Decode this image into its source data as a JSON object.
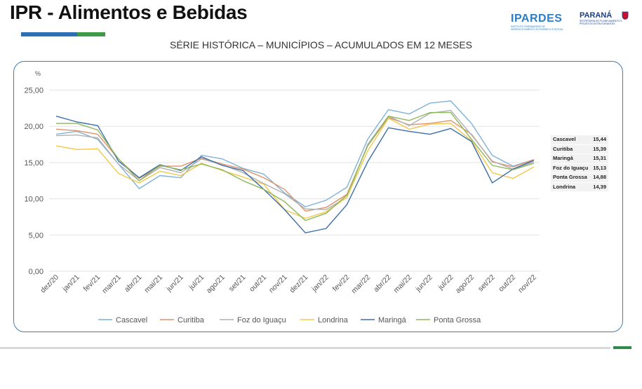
{
  "header": {
    "title": "IPR - Alimentos e Bebidas",
    "logo_ipardes": "IPARDES",
    "logo_ipardes_sub": "INSTITUTO PARANAENSE DE DESENVOLVIMENTO ECONÔMICO E SOCIAL",
    "logo_parana": "PARANÁ",
    "logo_parana_sub": "SECRETARIA DO PLANEJAMENTO E PROJETOS ESTRUTURANTES",
    "colors": {
      "bar_blue": "#2d6fb4",
      "bar_green": "#3c9a48"
    }
  },
  "chart_data": {
    "type": "line",
    "title": "SÉRIE HISTÓRICA – MUNICÍPIOS – ACUMULADOS EM 12 MESES",
    "ylabel": "%",
    "xlabel": "",
    "ylim": [
      0,
      25
    ],
    "yticks": [
      "0,00",
      "5,00",
      "10,00",
      "15,00",
      "20,00",
      "25,00"
    ],
    "grid": true,
    "legend_position": "bottom",
    "categories": [
      "dez/20",
      "jan/21",
      "fev/21",
      "mar/21",
      "abr/21",
      "mai/21",
      "jun/21",
      "jul/21",
      "ago/21",
      "set/21",
      "out/21",
      "nov/21",
      "dez/21",
      "jan/22",
      "fev/22",
      "mar/22",
      "abr/22",
      "mai/22",
      "jun/22",
      "jul/22",
      "ago/22",
      "set/22",
      "out/22",
      "nov/22"
    ],
    "series": [
      {
        "name": "Cascavel",
        "color": "#7fb2d6",
        "values": [
          18.9,
          19.3,
          18.2,
          14.8,
          11.4,
          13.2,
          12.9,
          16.0,
          15.5,
          14.2,
          13.4,
          10.8,
          8.9,
          9.8,
          11.6,
          18.2,
          22.3,
          21.7,
          23.2,
          23.5,
          20.4,
          16.0,
          14.5,
          15.4
        ]
      },
      {
        "name": "Curitiba",
        "color": "#e0926a",
        "values": [
          19.6,
          19.4,
          18.9,
          15.5,
          12.8,
          14.5,
          14.5,
          15.6,
          14.8,
          14.1,
          12.9,
          11.3,
          8.3,
          8.8,
          10.6,
          17.3,
          21.2,
          20.2,
          20.4,
          20.8,
          18.9,
          15.1,
          14.4,
          15.4
        ]
      },
      {
        "name": "Foz do Iguaçu",
        "color": "#b0b0b0",
        "values": [
          18.7,
          18.8,
          18.4,
          14.8,
          12.5,
          14.3,
          13.6,
          15.5,
          14.7,
          13.6,
          12.1,
          10.7,
          8.6,
          8.5,
          10.2,
          17.5,
          21.4,
          20.1,
          21.8,
          22.2,
          18.8,
          15.2,
          14.1,
          15.1
        ]
      },
      {
        "name": "Londrina",
        "color": "#f2c84b",
        "values": [
          17.3,
          16.8,
          16.9,
          13.5,
          12.2,
          13.8,
          13.2,
          14.9,
          13.9,
          13.0,
          12.0,
          8.5,
          7.3,
          8.2,
          10.2,
          16.6,
          21.1,
          19.6,
          20.3,
          20.4,
          18.0,
          13.6,
          12.8,
          14.4
        ]
      },
      {
        "name": "Maringá",
        "color": "#3d6ea8",
        "values": [
          21.4,
          20.6,
          20.1,
          15.2,
          12.9,
          14.7,
          13.9,
          15.8,
          14.6,
          13.9,
          11.3,
          8.5,
          5.3,
          5.9,
          9.2,
          15.1,
          19.8,
          19.3,
          18.9,
          19.7,
          17.9,
          12.2,
          14.1,
          15.3
        ]
      },
      {
        "name": "Ponta Grossa",
        "color": "#8db75a",
        "values": [
          20.4,
          20.4,
          19.5,
          15.5,
          12.5,
          14.6,
          14.0,
          14.8,
          14.0,
          12.5,
          11.3,
          9.6,
          7.0,
          8.0,
          10.5,
          17.3,
          21.4,
          20.8,
          21.9,
          21.9,
          18.2,
          14.6,
          14.0,
          14.9
        ]
      }
    ],
    "latest_table": [
      {
        "name": "Cascavel",
        "value": "15,44"
      },
      {
        "name": "Curitiba",
        "value": "15,39"
      },
      {
        "name": "Maringá",
        "value": "15,31"
      },
      {
        "name": "Foz do Iguaçu",
        "value": "15,13"
      },
      {
        "name": "Ponta Grossa",
        "value": "14,88"
      },
      {
        "name": "Londrina",
        "value": "14,39"
      }
    ]
  }
}
